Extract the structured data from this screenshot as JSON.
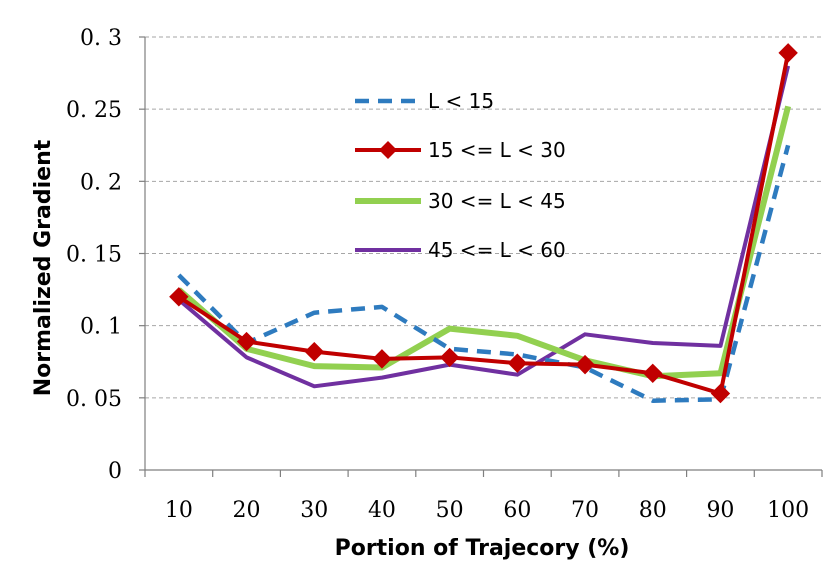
{
  "chart_data": {
    "type": "line",
    "title": "",
    "xlabel": "Portion of Trajecory (%)",
    "ylabel": "Normalized Gradient",
    "categories": [
      "10",
      "20",
      "30",
      "40",
      "50",
      "60",
      "70",
      "80",
      "90",
      "100"
    ],
    "ylim": [
      0,
      0.3
    ],
    "yticks": [
      0,
      0.05,
      0.1,
      0.15,
      0.2,
      0.25,
      0.3
    ],
    "ytick_labels": [
      "0",
      "0. 05",
      "0. 1",
      "0. 15",
      "0. 2",
      "0. 25",
      "0. 3"
    ],
    "grid": "horizontal dashed",
    "legend_position": "upper-center",
    "series": [
      {
        "name": "L < 15",
        "color": "#2e7bbf",
        "style": "dashed",
        "marker": "none",
        "values": [
          0.135,
          0.088,
          0.109,
          0.113,
          0.084,
          0.08,
          0.071,
          0.048,
          0.049,
          0.225
        ]
      },
      {
        "name": "15 <= L < 30",
        "color": "#c00000",
        "style": "solid",
        "marker": "diamond",
        "values": [
          0.12,
          0.089,
          0.082,
          0.077,
          0.078,
          0.074,
          0.073,
          0.067,
          0.053,
          0.289
        ]
      },
      {
        "name": "30 <= L < 45",
        "color": "#92d050",
        "style": "solid-thick",
        "marker": "none",
        "values": [
          0.125,
          0.084,
          0.072,
          0.071,
          0.098,
          0.093,
          0.076,
          0.065,
          0.067,
          0.252
        ]
      },
      {
        "name": "45 <= L < 60",
        "color": "#7030a0",
        "style": "solid",
        "marker": "none",
        "values": [
          0.118,
          0.078,
          0.058,
          0.064,
          0.073,
          0.066,
          0.094,
          0.088,
          0.086,
          0.28
        ]
      }
    ]
  }
}
